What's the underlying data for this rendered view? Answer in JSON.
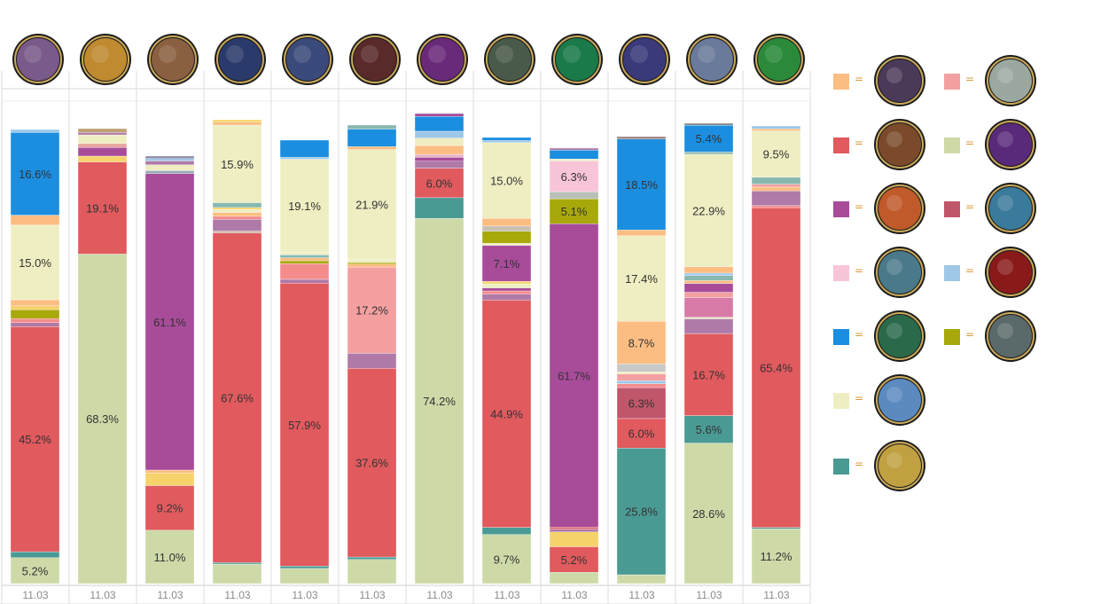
{
  "chart_data": {
    "type": "bar",
    "stacked": true,
    "normalized": true,
    "categories": [
      "11.03",
      "11.03",
      "11.03",
      "11.03",
      "11.03",
      "11.03",
      "11.03",
      "11.03",
      "11.03",
      "11.03",
      "11.03",
      "11.03"
    ],
    "category_icons": [
      "champion-portrait-1-icon",
      "champion-portrait-2-icon",
      "champion-portrait-3-icon",
      "champion-portrait-4-icon",
      "champion-portrait-5-icon",
      "champion-portrait-6-icon",
      "champion-portrait-7-icon",
      "champion-portrait-8-icon",
      "champion-portrait-9-icon",
      "champion-portrait-10-icon",
      "champion-portrait-11-icon",
      "champion-portrait-12-icon"
    ],
    "legend_position": "right",
    "grid": true,
    "bars": [
      [
        {
          "c": "#cddaa8",
          "v": 5.2,
          "label": "5.2%"
        },
        {
          "c": "#4a9a94",
          "v": 1.2
        },
        {
          "c": "#e05a5e",
          "v": 45.2,
          "label": "45.2%"
        },
        {
          "c": "#b07aa8",
          "v": 0.8
        },
        {
          "c": "#f48c8c",
          "v": 0.8
        },
        {
          "c": "#a8a80a",
          "v": 1.8
        },
        {
          "c": "#f5d36a",
          "v": 0.8
        },
        {
          "c": "#fbbd82",
          "v": 1.2
        },
        {
          "c": "#eeeec2",
          "v": 15.0,
          "label": "15.0%"
        },
        {
          "c": "#fbbd82",
          "v": 2.0
        },
        {
          "c": "#1b8ee0",
          "v": 16.6,
          "label": "16.6%"
        },
        {
          "c": "#9ec7e8",
          "v": 0.6
        }
      ],
      [
        {
          "c": "#cddaa8",
          "v": 68.3,
          "label": "68.3%"
        },
        {
          "c": "#e05a5e",
          "v": 19.1,
          "label": "19.1%"
        },
        {
          "c": "#f5d36a",
          "v": 1.2
        },
        {
          "c": "#a84c9a",
          "v": 1.8
        },
        {
          "c": "#e8a6a0",
          "v": 0.8
        },
        {
          "c": "#eeeec2",
          "v": 1.8
        },
        {
          "c": "#b07aa8",
          "v": 0.5
        },
        {
          "c": "#bfa070",
          "v": 0.8
        }
      ],
      [
        {
          "c": "#cddaa8",
          "v": 11.0,
          "label": "11.0%"
        },
        {
          "c": "#e05a5e",
          "v": 9.2,
          "label": "9.2%"
        },
        {
          "c": "#f5d36a",
          "v": 2.6
        },
        {
          "c": "#fbbd82",
          "v": 0.6
        },
        {
          "c": "#a84c9a",
          "v": 61.1,
          "label": "61.1%"
        },
        {
          "c": "#9aa8b8",
          "v": 0.6
        },
        {
          "c": "#eeeec2",
          "v": 1.2
        },
        {
          "c": "#b07aa8",
          "v": 0.8
        },
        {
          "c": "#9ec7e8",
          "v": 0.5
        },
        {
          "c": "#8888aa",
          "v": 0.5
        }
      ],
      [
        {
          "c": "#cddaa8",
          "v": 4.0
        },
        {
          "c": "#4a9a94",
          "v": 0.3
        },
        {
          "c": "#e05a5e",
          "v": 67.6,
          "label": "67.6%"
        },
        {
          "c": "#c8b0a0",
          "v": 0.4
        },
        {
          "c": "#b07aa8",
          "v": 2.4
        },
        {
          "c": "#f48c8c",
          "v": 0.6
        },
        {
          "c": "#fbbd82",
          "v": 0.8
        },
        {
          "c": "#eeeec2",
          "v": 0.6
        },
        {
          "c": "#f5d36a",
          "v": 0.4
        },
        {
          "c": "#88b8b0",
          "v": 1.0
        },
        {
          "c": "#eeeec2",
          "v": 15.9,
          "label": "15.9%"
        },
        {
          "c": "#fbbd82",
          "v": 0.6
        },
        {
          "c": "#f5d36a",
          "v": 0.5
        }
      ],
      [
        {
          "c": "#cddaa8",
          "v": 3.1
        },
        {
          "c": "#4a9a94",
          "v": 0.5
        },
        {
          "c": "#e05a5e",
          "v": 57.9,
          "label": "57.9%"
        },
        {
          "c": "#b07aa8",
          "v": 0.8
        },
        {
          "c": "#f48c8c",
          "v": 3.2
        },
        {
          "c": "#a8a80a",
          "v": 0.6
        },
        {
          "c": "#fbbd82",
          "v": 0.6
        },
        {
          "c": "#88b8b0",
          "v": 0.6
        },
        {
          "c": "#eeeec2",
          "v": 0.5
        },
        {
          "c": "#eeeec2",
          "v": 19.1,
          "label": "19.1%"
        },
        {
          "c": "#9ec7e8",
          "v": 0.4
        },
        {
          "c": "#1b8ee0",
          "v": 3.5
        }
      ],
      [
        {
          "c": "#cddaa8",
          "v": 4.8
        },
        {
          "c": "#4a9a94",
          "v": 0.5
        },
        {
          "c": "#e05a5e",
          "v": 37.6,
          "label": "37.6%"
        },
        {
          "c": "#b07aa8",
          "v": 3.0
        },
        {
          "c": "#f4a0a0",
          "v": 17.2,
          "label": "17.2%"
        },
        {
          "c": "#fbbd82",
          "v": 0.6
        },
        {
          "c": "#a8a80a",
          "v": 0.3
        },
        {
          "c": "#eeeec2",
          "v": 0.6
        },
        {
          "c": "#eeeec2",
          "v": 21.9,
          "label": "21.9%"
        },
        {
          "c": "#fbbd82",
          "v": 0.6
        },
        {
          "c": "#1b8ee0",
          "v": 3.5
        },
        {
          "c": "#88b8b0",
          "v": 0.8
        }
      ],
      [
        {
          "c": "#cddaa8",
          "v": 74.2,
          "label": "74.2%"
        },
        {
          "c": "#4a9a94",
          "v": 4.2
        },
        {
          "c": "#e05a5e",
          "v": 6.0,
          "label": "6.0%"
        },
        {
          "c": "#b07aa8",
          "v": 1.4
        },
        {
          "c": "#a84c9a",
          "v": 0.8
        },
        {
          "c": "#e8b4c8",
          "v": 0.6
        },
        {
          "c": "#fbbd82",
          "v": 1.8
        },
        {
          "c": "#eeeec2",
          "v": 1.5
        },
        {
          "c": "#9ec7e8",
          "v": 1.4
        },
        {
          "c": "#1b8ee0",
          "v": 3.0
        },
        {
          "c": "#a84c9a",
          "v": 0.6
        }
      ],
      [
        {
          "c": "#cddaa8",
          "v": 9.7,
          "label": "9.7%"
        },
        {
          "c": "#4a9a94",
          "v": 1.4
        },
        {
          "c": "#e05a5e",
          "v": 44.9,
          "label": "44.9%"
        },
        {
          "c": "#b07aa8",
          "v": 1.2
        },
        {
          "c": "#f48c8c",
          "v": 0.6
        },
        {
          "c": "#a84c9a",
          "v": 0.6
        },
        {
          "c": "#eeeec2",
          "v": 0.8
        },
        {
          "c": "#f5d36a",
          "v": 0.5
        },
        {
          "c": "#a84c9a",
          "v": 7.1,
          "label": "7.1%"
        },
        {
          "c": "#eeeec2",
          "v": 0.4
        },
        {
          "c": "#a8a80a",
          "v": 2.4
        },
        {
          "c": "#c8c0b0",
          "v": 1.0
        },
        {
          "c": "#fbbd82",
          "v": 1.5
        },
        {
          "c": "#eeeec2",
          "v": 15.0,
          "label": "15.0%"
        },
        {
          "c": "#9ec7e8",
          "v": 0.4
        },
        {
          "c": "#1b8ee0",
          "v": 0.6
        }
      ],
      [
        {
          "c": "#cddaa8",
          "v": 2.3
        },
        {
          "c": "#e05a5e",
          "v": 5.2,
          "label": "5.2%"
        },
        {
          "c": "#f5d36a",
          "v": 3.0
        },
        {
          "c": "#b07aa8",
          "v": 0.6
        },
        {
          "c": "#e05a5e",
          "v": 0.4
        },
        {
          "c": "#a84c9a",
          "v": 61.7,
          "label": "61.7%"
        },
        {
          "c": "#a8a80a",
          "v": 5.1,
          "label": "5.1%"
        },
        {
          "c": "#b8c0b8",
          "v": 1.4
        },
        {
          "c": "#f8c4d8",
          "v": 6.3,
          "label": "6.3%"
        },
        {
          "c": "#eeeec2",
          "v": 0.4
        },
        {
          "c": "#1b8ee0",
          "v": 1.8
        },
        {
          "c": "#b07aa8",
          "v": 0.4
        }
      ],
      [
        {
          "c": "#cddaa8",
          "v": 1.8
        },
        {
          "c": "#4a9a94",
          "v": 25.8,
          "label": "25.8%"
        },
        {
          "c": "#e05a5e",
          "v": 6.0,
          "label": "6.0%"
        },
        {
          "c": "#c0566a",
          "v": 6.3,
          "label": "6.3%"
        },
        {
          "c": "#f48c8c",
          "v": 0.8
        },
        {
          "c": "#9ec7e8",
          "v": 0.6
        },
        {
          "c": "#f4a0a0",
          "v": 1.4
        },
        {
          "c": "#eeeec2",
          "v": 0.4
        },
        {
          "c": "#c8c8c8",
          "v": 1.6
        },
        {
          "c": "#fbbd82",
          "v": 8.7,
          "label": "8.7%"
        },
        {
          "c": "#eeeec2",
          "v": 17.4,
          "label": "17.4%"
        },
        {
          "c": "#fbbd82",
          "v": 1.2
        },
        {
          "c": "#1b8ee0",
          "v": 18.5,
          "label": "18.5%"
        },
        {
          "c": "#9a8080",
          "v": 0.5
        }
      ],
      [
        {
          "c": "#cddaa8",
          "v": 28.6,
          "label": "28.6%"
        },
        {
          "c": "#4a9a94",
          "v": 5.6,
          "label": "5.6%"
        },
        {
          "c": "#e05a5e",
          "v": 16.7,
          "label": "16.7%"
        },
        {
          "c": "#b07aa8",
          "v": 3.0
        },
        {
          "c": "#eeeec2",
          "v": 0.3
        },
        {
          "c": "#d87aa8",
          "v": 4.0
        },
        {
          "c": "#f4a0a0",
          "v": 1.1
        },
        {
          "c": "#a84c9a",
          "v": 1.8
        },
        {
          "c": "#fbbd82",
          "v": 0.6
        },
        {
          "c": "#88b8b0",
          "v": 1.0
        },
        {
          "c": "#9ec7e8",
          "v": 0.5
        },
        {
          "c": "#fbbd82",
          "v": 1.3
        },
        {
          "c": "#eeeec2",
          "v": 22.9,
          "label": "22.9%"
        },
        {
          "c": "#88b8b0",
          "v": 0.5
        },
        {
          "c": "#1b8ee0",
          "v": 5.4,
          "label": "5.4%"
        },
        {
          "c": "#888888",
          "v": 0.4
        }
      ],
      [
        {
          "c": "#cddaa8",
          "v": 11.2,
          "label": "11.2%"
        },
        {
          "c": "#4a9a94",
          "v": 0.3
        },
        {
          "c": "#e05a5e",
          "v": 65.4,
          "label": "65.4%"
        },
        {
          "c": "#f48c8c",
          "v": 0.4
        },
        {
          "c": "#b07aa8",
          "v": 3.0
        },
        {
          "c": "#fbbd82",
          "v": 0.8
        },
        {
          "c": "#f4a0a0",
          "v": 0.6
        },
        {
          "c": "#88b8b0",
          "v": 1.4
        },
        {
          "c": "#eeeec2",
          "v": 9.5,
          "label": "9.5%"
        },
        {
          "c": "#fbbd82",
          "v": 0.4
        },
        {
          "c": "#9ec7e8",
          "v": 0.6
        }
      ]
    ],
    "legend": [
      {
        "color": "#fbbd82",
        "icon": "rune-icon-1",
        "eq": "="
      },
      {
        "color": "#f4a0a0",
        "icon": "rune-icon-2",
        "eq": "="
      },
      {
        "color": "#e05a5e",
        "icon": "rune-icon-3",
        "eq": "="
      },
      {
        "color": "#cddaa8",
        "icon": "rune-icon-4",
        "eq": "="
      },
      {
        "color": "#a84c9a",
        "icon": "rune-icon-5",
        "eq": "="
      },
      {
        "color": "#c0566a",
        "icon": "rune-icon-6",
        "eq": "="
      },
      {
        "color": "#f8c4d8",
        "icon": "rune-icon-7",
        "eq": "="
      },
      {
        "color": "#9ec7e8",
        "icon": "rune-icon-8",
        "eq": "="
      },
      {
        "color": "#1b8ee0",
        "icon": "rune-icon-9",
        "eq": "="
      },
      {
        "color": "#a8a80a",
        "icon": "rune-icon-10",
        "eq": "="
      },
      {
        "color": "#eeeec2",
        "icon": "rune-icon-11",
        "eq": "="
      },
      {
        "color": "#4a9a94",
        "icon": "rune-icon-13",
        "eq": "="
      }
    ],
    "portrait_colors": [
      "#7a5a8a",
      "#c08a30",
      "#8a6040",
      "#2a3a6a",
      "#3a4a7a",
      "#5a2a2a",
      "#6a2a7a",
      "#4a5a4a",
      "#1a7a4a",
      "#3a3a7a",
      "#6a7a9a",
      "#2a8a3a"
    ],
    "legend_icon_colors": [
      "#4a3a5a",
      "#9aa8a0",
      "#7a4a2a",
      "#5a2a7a",
      "#c05a2a",
      "#3a7a9a",
      "#4a7a8a",
      "#8a1a1a",
      "#2a6a4a",
      "#5a6a6a",
      "#5a8ac0",
      "#c0a040"
    ]
  }
}
